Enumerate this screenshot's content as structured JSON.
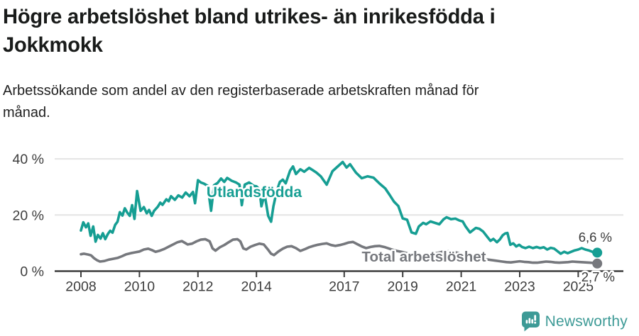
{
  "header": {
    "title_lines": [
      "Högre arbetslöshet bland utrikes- än inrikesfödda i",
      "Jokkmokk"
    ],
    "subtitle_lines": [
      "Arbetssökande som andel av den registerbaserade arbetskraften månad för",
      "månad."
    ]
  },
  "footer": {
    "brand": "Newsworthy",
    "brand_color": "#3d9a96",
    "logo_icon": "newsworthy-speech-bubble-bar-chart-icon"
  },
  "colors": {
    "foreign_born_line": "#169e93",
    "total_line": "#76787d",
    "axis": "#3d3d3d",
    "gridline": "#e4e4e4",
    "annotation_text": "#3a3a3a"
  },
  "chart_data": {
    "type": "line",
    "title": "Högre arbetslöshet bland utrikes- än inrikesfödda i Jokkmokk",
    "subtitle": "Arbetssökande som andel av den registerbaserade arbetskraften månad för månad.",
    "xlabel": "",
    "ylabel": "",
    "grid": "horizontal",
    "legend_position": "inline-labels",
    "x_axis": {
      "ticks": [
        2008,
        2010,
        2012,
        2014,
        2017,
        2019,
        2021,
        2023,
        2025
      ]
    },
    "y_axis": {
      "ticks": [
        {
          "value": 0,
          "label": "0 %"
        },
        {
          "value": 20,
          "label": "20 %"
        },
        {
          "value": 40,
          "label": "40 %"
        }
      ],
      "range": [
        0,
        45
      ]
    },
    "series": [
      {
        "name": "Utlandsfödda",
        "color": "#169e93",
        "end_label": "6,6 %",
        "end_value": 6.6,
        "points": [
          [
            2008.0,
            14.5
          ],
          [
            2008.08,
            17.4
          ],
          [
            2008.17,
            15.6
          ],
          [
            2008.25,
            17.0
          ],
          [
            2008.33,
            12.6
          ],
          [
            2008.42,
            15.9
          ],
          [
            2008.5,
            10.5
          ],
          [
            2008.58,
            12.9
          ],
          [
            2008.67,
            11.6
          ],
          [
            2008.75,
            13.5
          ],
          [
            2008.83,
            11.4
          ],
          [
            2008.92,
            13.2
          ],
          [
            2009.0,
            14.4
          ],
          [
            2009.08,
            13.7
          ],
          [
            2009.17,
            16.5
          ],
          [
            2009.25,
            17.6
          ],
          [
            2009.33,
            21.0
          ],
          [
            2009.42,
            19.8
          ],
          [
            2009.5,
            22.4
          ],
          [
            2009.58,
            20.9
          ],
          [
            2009.67,
            19.7
          ],
          [
            2009.75,
            23.5
          ],
          [
            2009.83,
            18.6
          ],
          [
            2009.92,
            28.5
          ],
          [
            2010.04,
            21.5
          ],
          [
            2010.15,
            22.8
          ],
          [
            2010.25,
            20.6
          ],
          [
            2010.33,
            21.8
          ],
          [
            2010.42,
            19.7
          ],
          [
            2010.5,
            21.5
          ],
          [
            2010.63,
            23.0
          ],
          [
            2010.71,
            24.4
          ],
          [
            2010.79,
            23.6
          ],
          [
            2010.92,
            25.6
          ],
          [
            2011.0,
            24.9
          ],
          [
            2011.08,
            26.7
          ],
          [
            2011.21,
            25.4
          ],
          [
            2011.33,
            27.0
          ],
          [
            2011.46,
            26.2
          ],
          [
            2011.58,
            28.0
          ],
          [
            2011.71,
            26.7
          ],
          [
            2011.83,
            28.2
          ],
          [
            2011.9,
            24.2
          ],
          [
            2012.0,
            32.4
          ],
          [
            2012.1,
            31.6
          ],
          [
            2012.2,
            31.2
          ],
          [
            2012.33,
            30.4
          ],
          [
            2012.45,
            21.5
          ],
          [
            2012.55,
            30.6
          ],
          [
            2012.67,
            31.4
          ],
          [
            2012.79,
            33.0
          ],
          [
            2012.9,
            31.8
          ],
          [
            2013.0,
            33.2
          ],
          [
            2013.15,
            32.2
          ],
          [
            2013.3,
            31.6
          ],
          [
            2013.42,
            30.8
          ],
          [
            2013.5,
            23.5
          ],
          [
            2013.6,
            30.8
          ],
          [
            2013.75,
            31.6
          ],
          [
            2013.9,
            30.4
          ],
          [
            2014.0,
            30.2
          ],
          [
            2014.1,
            29.2
          ],
          [
            2014.17,
            23.1
          ],
          [
            2014.28,
            27.4
          ],
          [
            2014.4,
            19.7
          ],
          [
            2014.5,
            17.6
          ],
          [
            2014.58,
            23.1
          ],
          [
            2014.7,
            28.7
          ],
          [
            2014.8,
            31.8
          ],
          [
            2014.9,
            32.6
          ],
          [
            2015.0,
            31.3
          ],
          [
            2015.15,
            35.8
          ],
          [
            2015.25,
            37.3
          ],
          [
            2015.35,
            34.6
          ],
          [
            2015.5,
            36.3
          ],
          [
            2015.63,
            35.4
          ],
          [
            2015.8,
            36.8
          ],
          [
            2015.95,
            35.8
          ],
          [
            2016.05,
            35.1
          ],
          [
            2016.2,
            33.8
          ],
          [
            2016.4,
            30.8
          ],
          [
            2016.6,
            35.6
          ],
          [
            2016.8,
            37.5
          ],
          [
            2016.95,
            38.9
          ],
          [
            2017.08,
            36.9
          ],
          [
            2017.2,
            38.1
          ],
          [
            2017.4,
            35.1
          ],
          [
            2017.6,
            33.1
          ],
          [
            2017.8,
            33.8
          ],
          [
            2018.0,
            33.3
          ],
          [
            2018.2,
            31.3
          ],
          [
            2018.4,
            29.5
          ],
          [
            2018.55,
            27.2
          ],
          [
            2018.7,
            24.8
          ],
          [
            2018.85,
            23.2
          ],
          [
            2019.0,
            18.8
          ],
          [
            2019.15,
            18.3
          ],
          [
            2019.3,
            13.8
          ],
          [
            2019.45,
            13.3
          ],
          [
            2019.55,
            15.9
          ],
          [
            2019.7,
            17.2
          ],
          [
            2019.8,
            16.7
          ],
          [
            2019.95,
            17.7
          ],
          [
            2020.1,
            17.2
          ],
          [
            2020.25,
            16.7
          ],
          [
            2020.4,
            18.5
          ],
          [
            2020.5,
            19.2
          ],
          [
            2020.65,
            18.5
          ],
          [
            2020.8,
            18.7
          ],
          [
            2020.95,
            18.0
          ],
          [
            2021.05,
            17.7
          ],
          [
            2021.15,
            15.9
          ],
          [
            2021.3,
            13.8
          ],
          [
            2021.4,
            14.6
          ],
          [
            2021.5,
            15.4
          ],
          [
            2021.62,
            15.1
          ],
          [
            2021.75,
            14.1
          ],
          [
            2021.9,
            12.1
          ],
          [
            2022.0,
            10.8
          ],
          [
            2022.1,
            11.5
          ],
          [
            2022.22,
            10.3
          ],
          [
            2022.32,
            11.3
          ],
          [
            2022.42,
            12.8
          ],
          [
            2022.5,
            13.4
          ],
          [
            2022.58,
            13.6
          ],
          [
            2022.68,
            9.4
          ],
          [
            2022.78,
            9.9
          ],
          [
            2022.88,
            8.8
          ],
          [
            2022.98,
            9.4
          ],
          [
            2023.08,
            8.6
          ],
          [
            2023.2,
            8.2
          ],
          [
            2023.32,
            8.7
          ],
          [
            2023.45,
            8.2
          ],
          [
            2023.58,
            8.6
          ],
          [
            2023.7,
            8.2
          ],
          [
            2023.82,
            8.5
          ],
          [
            2023.94,
            7.7
          ],
          [
            2024.06,
            8.3
          ],
          [
            2024.18,
            8.0
          ],
          [
            2024.28,
            7.2
          ],
          [
            2024.4,
            6.2
          ],
          [
            2024.52,
            6.9
          ],
          [
            2024.64,
            6.4
          ],
          [
            2024.76,
            6.9
          ],
          [
            2024.88,
            7.4
          ],
          [
            2025.0,
            7.7
          ],
          [
            2025.12,
            8.2
          ],
          [
            2025.24,
            7.7
          ],
          [
            2025.36,
            7.4
          ],
          [
            2025.48,
            6.9
          ],
          [
            2025.56,
            6.3
          ],
          [
            2025.65,
            6.6
          ]
        ]
      },
      {
        "name": "Total arbetslöshet",
        "color": "#76787d",
        "end_label": "2,7 %",
        "end_value": 2.7,
        "points": [
          [
            2008.0,
            6.0
          ],
          [
            2008.1,
            6.2
          ],
          [
            2008.25,
            5.9
          ],
          [
            2008.35,
            5.6
          ],
          [
            2008.45,
            4.6
          ],
          [
            2008.55,
            3.9
          ],
          [
            2008.65,
            3.4
          ],
          [
            2008.8,
            3.6
          ],
          [
            2008.95,
            4.1
          ],
          [
            2009.1,
            4.4
          ],
          [
            2009.25,
            4.7
          ],
          [
            2009.4,
            5.3
          ],
          [
            2009.55,
            6.0
          ],
          [
            2009.7,
            6.4
          ],
          [
            2009.85,
            6.7
          ],
          [
            2010.0,
            7.0
          ],
          [
            2010.15,
            7.7
          ],
          [
            2010.3,
            8.0
          ],
          [
            2010.45,
            7.4
          ],
          [
            2010.55,
            6.9
          ],
          [
            2010.7,
            7.3
          ],
          [
            2010.85,
            7.9
          ],
          [
            2011.0,
            8.7
          ],
          [
            2011.15,
            9.5
          ],
          [
            2011.3,
            10.3
          ],
          [
            2011.45,
            10.7
          ],
          [
            2011.55,
            10.1
          ],
          [
            2011.65,
            9.5
          ],
          [
            2011.8,
            9.8
          ],
          [
            2011.95,
            10.6
          ],
          [
            2012.1,
            11.2
          ],
          [
            2012.25,
            11.4
          ],
          [
            2012.4,
            10.6
          ],
          [
            2012.5,
            8.1
          ],
          [
            2012.6,
            7.3
          ],
          [
            2012.75,
            8.5
          ],
          [
            2012.9,
            9.3
          ],
          [
            2013.05,
            10.3
          ],
          [
            2013.2,
            11.2
          ],
          [
            2013.35,
            11.4
          ],
          [
            2013.45,
            10.6
          ],
          [
            2013.55,
            8.1
          ],
          [
            2013.65,
            7.7
          ],
          [
            2013.8,
            8.7
          ],
          [
            2013.95,
            9.3
          ],
          [
            2014.1,
            9.8
          ],
          [
            2014.25,
            9.5
          ],
          [
            2014.4,
            7.6
          ],
          [
            2014.5,
            6.2
          ],
          [
            2014.6,
            5.7
          ],
          [
            2014.75,
            7.0
          ],
          [
            2014.9,
            8.0
          ],
          [
            2015.05,
            8.7
          ],
          [
            2015.2,
            8.9
          ],
          [
            2015.35,
            8.2
          ],
          [
            2015.5,
            7.2
          ],
          [
            2015.65,
            7.8
          ],
          [
            2015.8,
            8.5
          ],
          [
            2015.95,
            9.0
          ],
          [
            2016.1,
            9.4
          ],
          [
            2016.25,
            9.7
          ],
          [
            2016.4,
            9.9
          ],
          [
            2016.55,
            9.3
          ],
          [
            2016.7,
            9.0
          ],
          [
            2016.85,
            9.3
          ],
          [
            2017.0,
            9.7
          ],
          [
            2017.15,
            10.2
          ],
          [
            2017.3,
            10.4
          ],
          [
            2017.45,
            9.6
          ],
          [
            2017.6,
            8.8
          ],
          [
            2017.75,
            8.2
          ],
          [
            2017.9,
            8.6
          ],
          [
            2018.05,
            8.9
          ],
          [
            2018.2,
            9.0
          ],
          [
            2018.4,
            8.5
          ],
          [
            2018.6,
            7.8
          ],
          [
            2018.8,
            7.2
          ],
          [
            2019.0,
            6.8
          ],
          [
            2019.2,
            6.2
          ],
          [
            2019.4,
            5.5
          ],
          [
            2019.6,
            5.4
          ],
          [
            2019.8,
            5.8
          ],
          [
            2020.0,
            6.1
          ],
          [
            2020.2,
            6.5
          ],
          [
            2020.4,
            7.0
          ],
          [
            2020.6,
            7.1
          ],
          [
            2020.8,
            6.7
          ],
          [
            2021.0,
            6.2
          ],
          [
            2021.2,
            5.7
          ],
          [
            2021.4,
            5.2
          ],
          [
            2021.6,
            4.7
          ],
          [
            2021.8,
            4.3
          ],
          [
            2022.0,
            4.0
          ],
          [
            2022.2,
            3.7
          ],
          [
            2022.4,
            3.4
          ],
          [
            2022.55,
            3.2
          ],
          [
            2022.7,
            3.1
          ],
          [
            2022.85,
            3.3
          ],
          [
            2023.0,
            3.5
          ],
          [
            2023.15,
            3.3
          ],
          [
            2023.3,
            3.2
          ],
          [
            2023.45,
            3.0
          ],
          [
            2023.6,
            3.0
          ],
          [
            2023.75,
            3.2
          ],
          [
            2023.9,
            3.4
          ],
          [
            2024.05,
            3.3
          ],
          [
            2024.2,
            3.1
          ],
          [
            2024.35,
            3.0
          ],
          [
            2024.5,
            3.1
          ],
          [
            2024.65,
            3.2
          ],
          [
            2024.8,
            3.4
          ],
          [
            2024.95,
            3.3
          ],
          [
            2025.1,
            3.2
          ],
          [
            2025.25,
            3.1
          ],
          [
            2025.4,
            3.0
          ],
          [
            2025.52,
            2.9
          ],
          [
            2025.65,
            2.7
          ]
        ]
      }
    ]
  }
}
